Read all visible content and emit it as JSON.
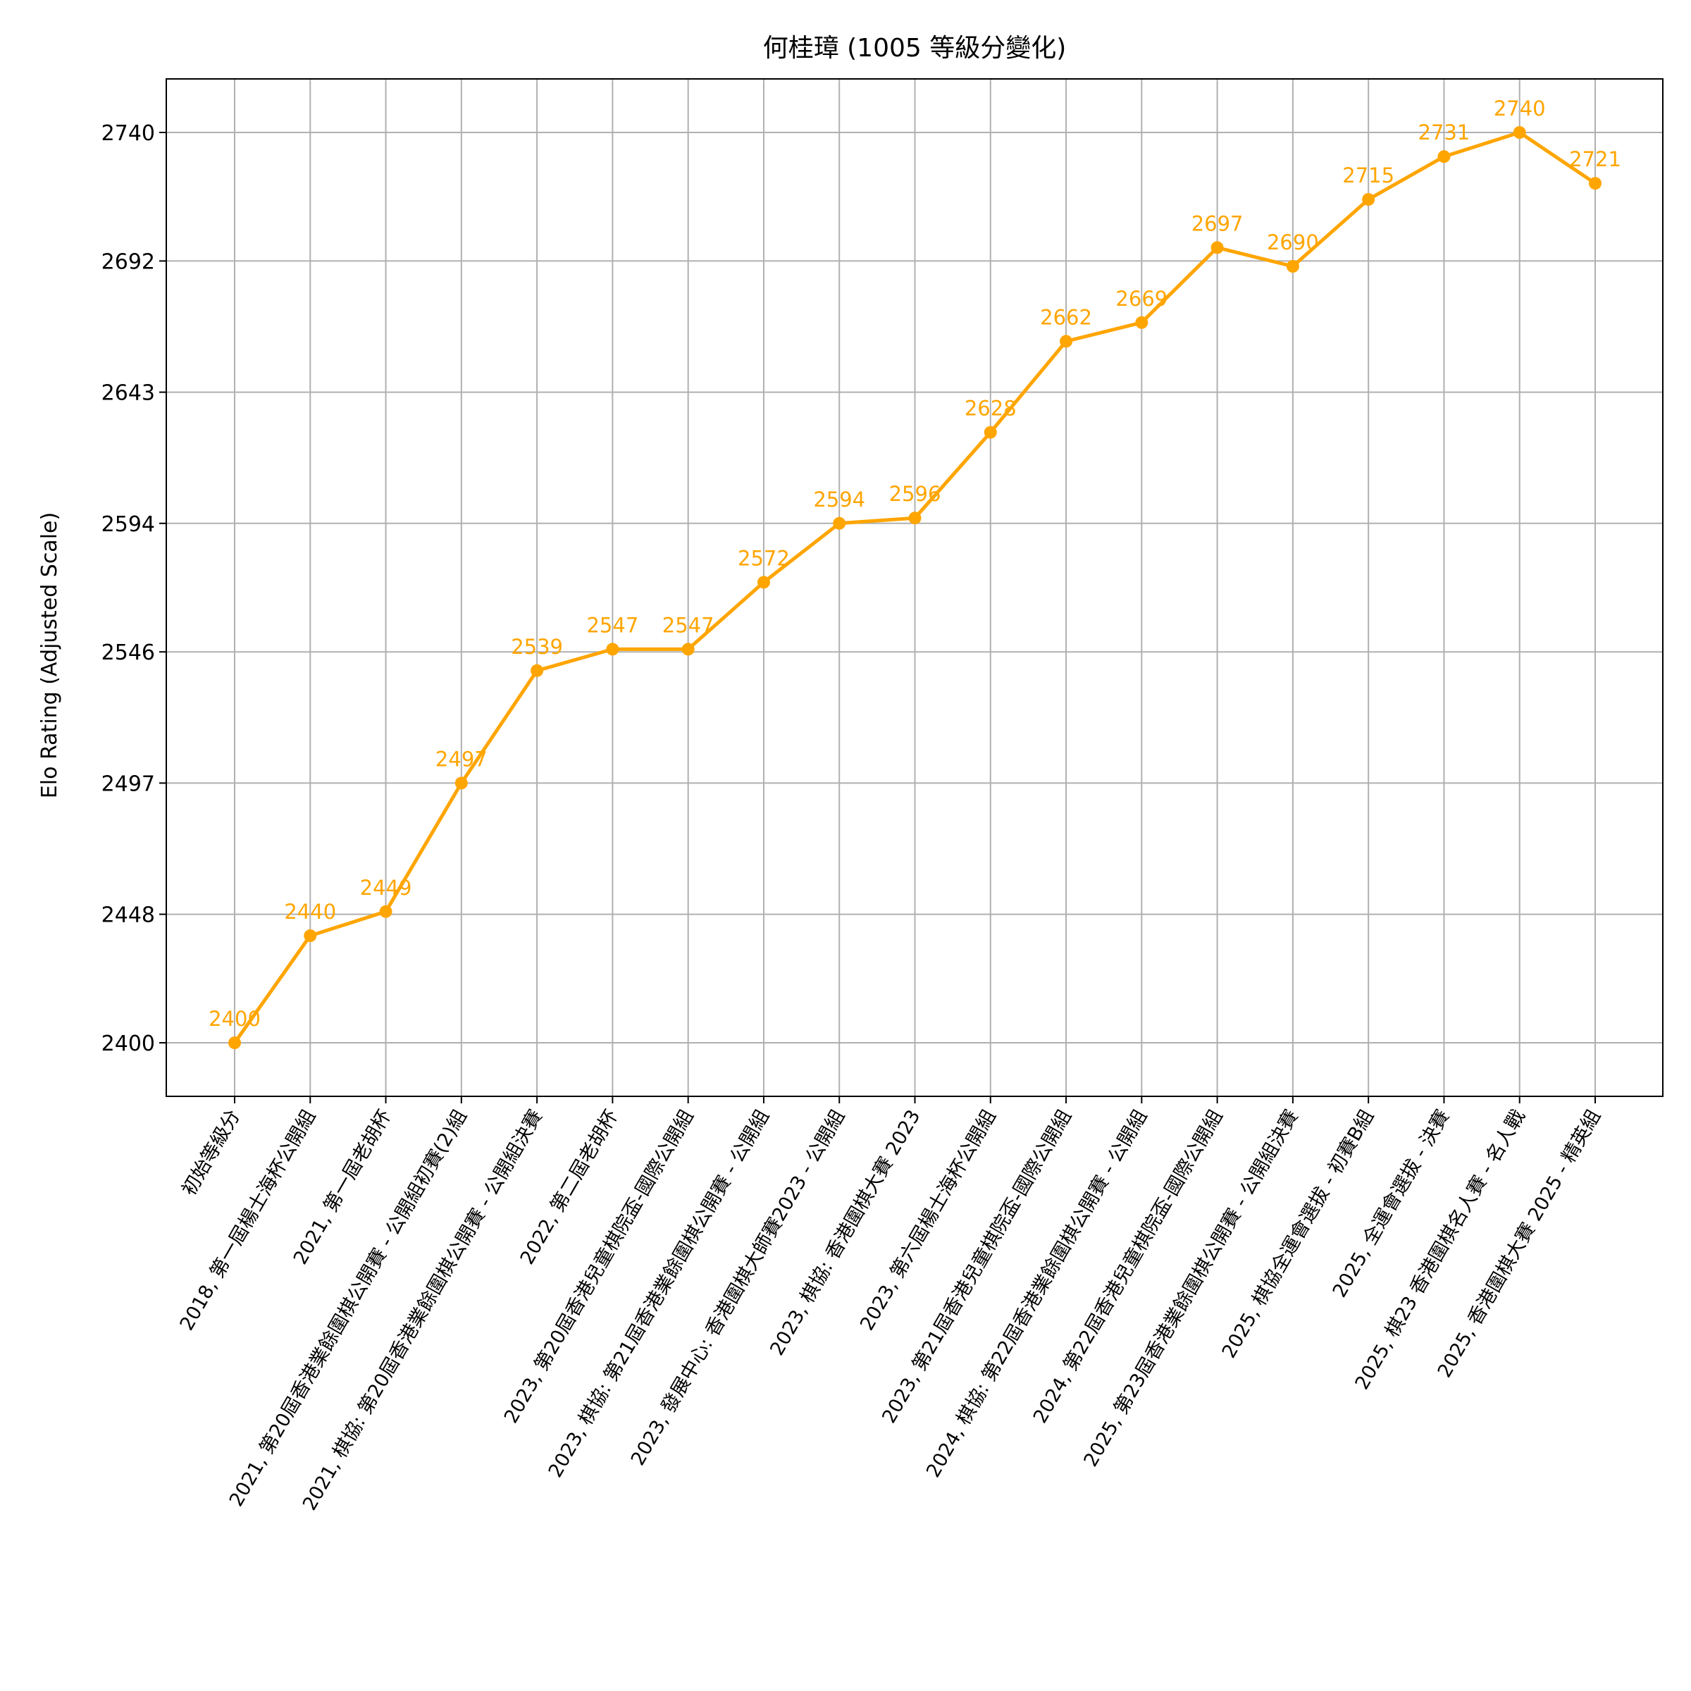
{
  "chart_data": {
    "type": "line",
    "title": "何桂璋 (1005 等級分變化)",
    "xlabel": "",
    "ylabel": "Elo Rating (Adjusted Scale)",
    "categories": [
      "初始等級分",
      "2018, 第一屆楊士海杯公開組",
      "2021, 第一屆老胡杯",
      "2021, 第20屆香港業餘圍棋公開賽 - 公開組初賽(2)組",
      "2021, 棋協: 第20屆香港業餘圍棋公開賽 - 公開組決賽",
      "2022, 第二屆老胡杯",
      "2023, 第20屆香港兒童棋院盃-國際公開組",
      "2023, 棋協: 第21屆香港業餘圍棋公開賽 - 公開組",
      "2023, 發展中心: 香港圍棋大師賽2023 - 公開組",
      "2023, 棋協: 香港圍棋大賽 2023",
      "2023, 第六屆楊士海杯公開組",
      "2023, 第21屆香港兒童棋院盃-國際公開組",
      "2024, 棋協: 第22屆香港業餘圍棋公開賽 - 公開組",
      "2024, 第22屆香港兒童棋院盃-國際公開組",
      "2025, 第23屆香港業餘圍棋公開賽 - 公開組決賽",
      "2025, 棋協全運會選拔 - 初賽B組",
      "2025, 全運會選拔 - 決賽",
      "2025, 棋23 香港圍棋名人賽 - 名人戰",
      "2025, 香港圍棋大賽 2025 - 精英組"
    ],
    "series": [
      {
        "values": [
          2400,
          2440,
          2449,
          2497,
          2539,
          2547,
          2547,
          2572,
          2594,
          2596,
          2628,
          2662,
          2669,
          2697,
          2690,
          2715,
          2731,
          2740,
          2721
        ],
        "labels": [
          "2400",
          "2440",
          "2449",
          "2497",
          "2539",
          "2547",
          "2547",
          "2572",
          "2594",
          "2596",
          "2628",
          "2662",
          "2669",
          "2697",
          "2690",
          "2715",
          "2731",
          "2740",
          "2721"
        ]
      }
    ],
    "yticks": [
      2400,
      2448,
      2497,
      2546,
      2594,
      2643,
      2692,
      2740
    ],
    "ytick_labels": [
      "2400",
      "2448",
      "2497",
      "2546",
      "2594",
      "2643",
      "2692",
      "2740"
    ],
    "ylim": [
      2380,
      2760
    ],
    "grid": true,
    "colors": {
      "series": "#FFA500",
      "grid": "#b0b0b0"
    }
  }
}
